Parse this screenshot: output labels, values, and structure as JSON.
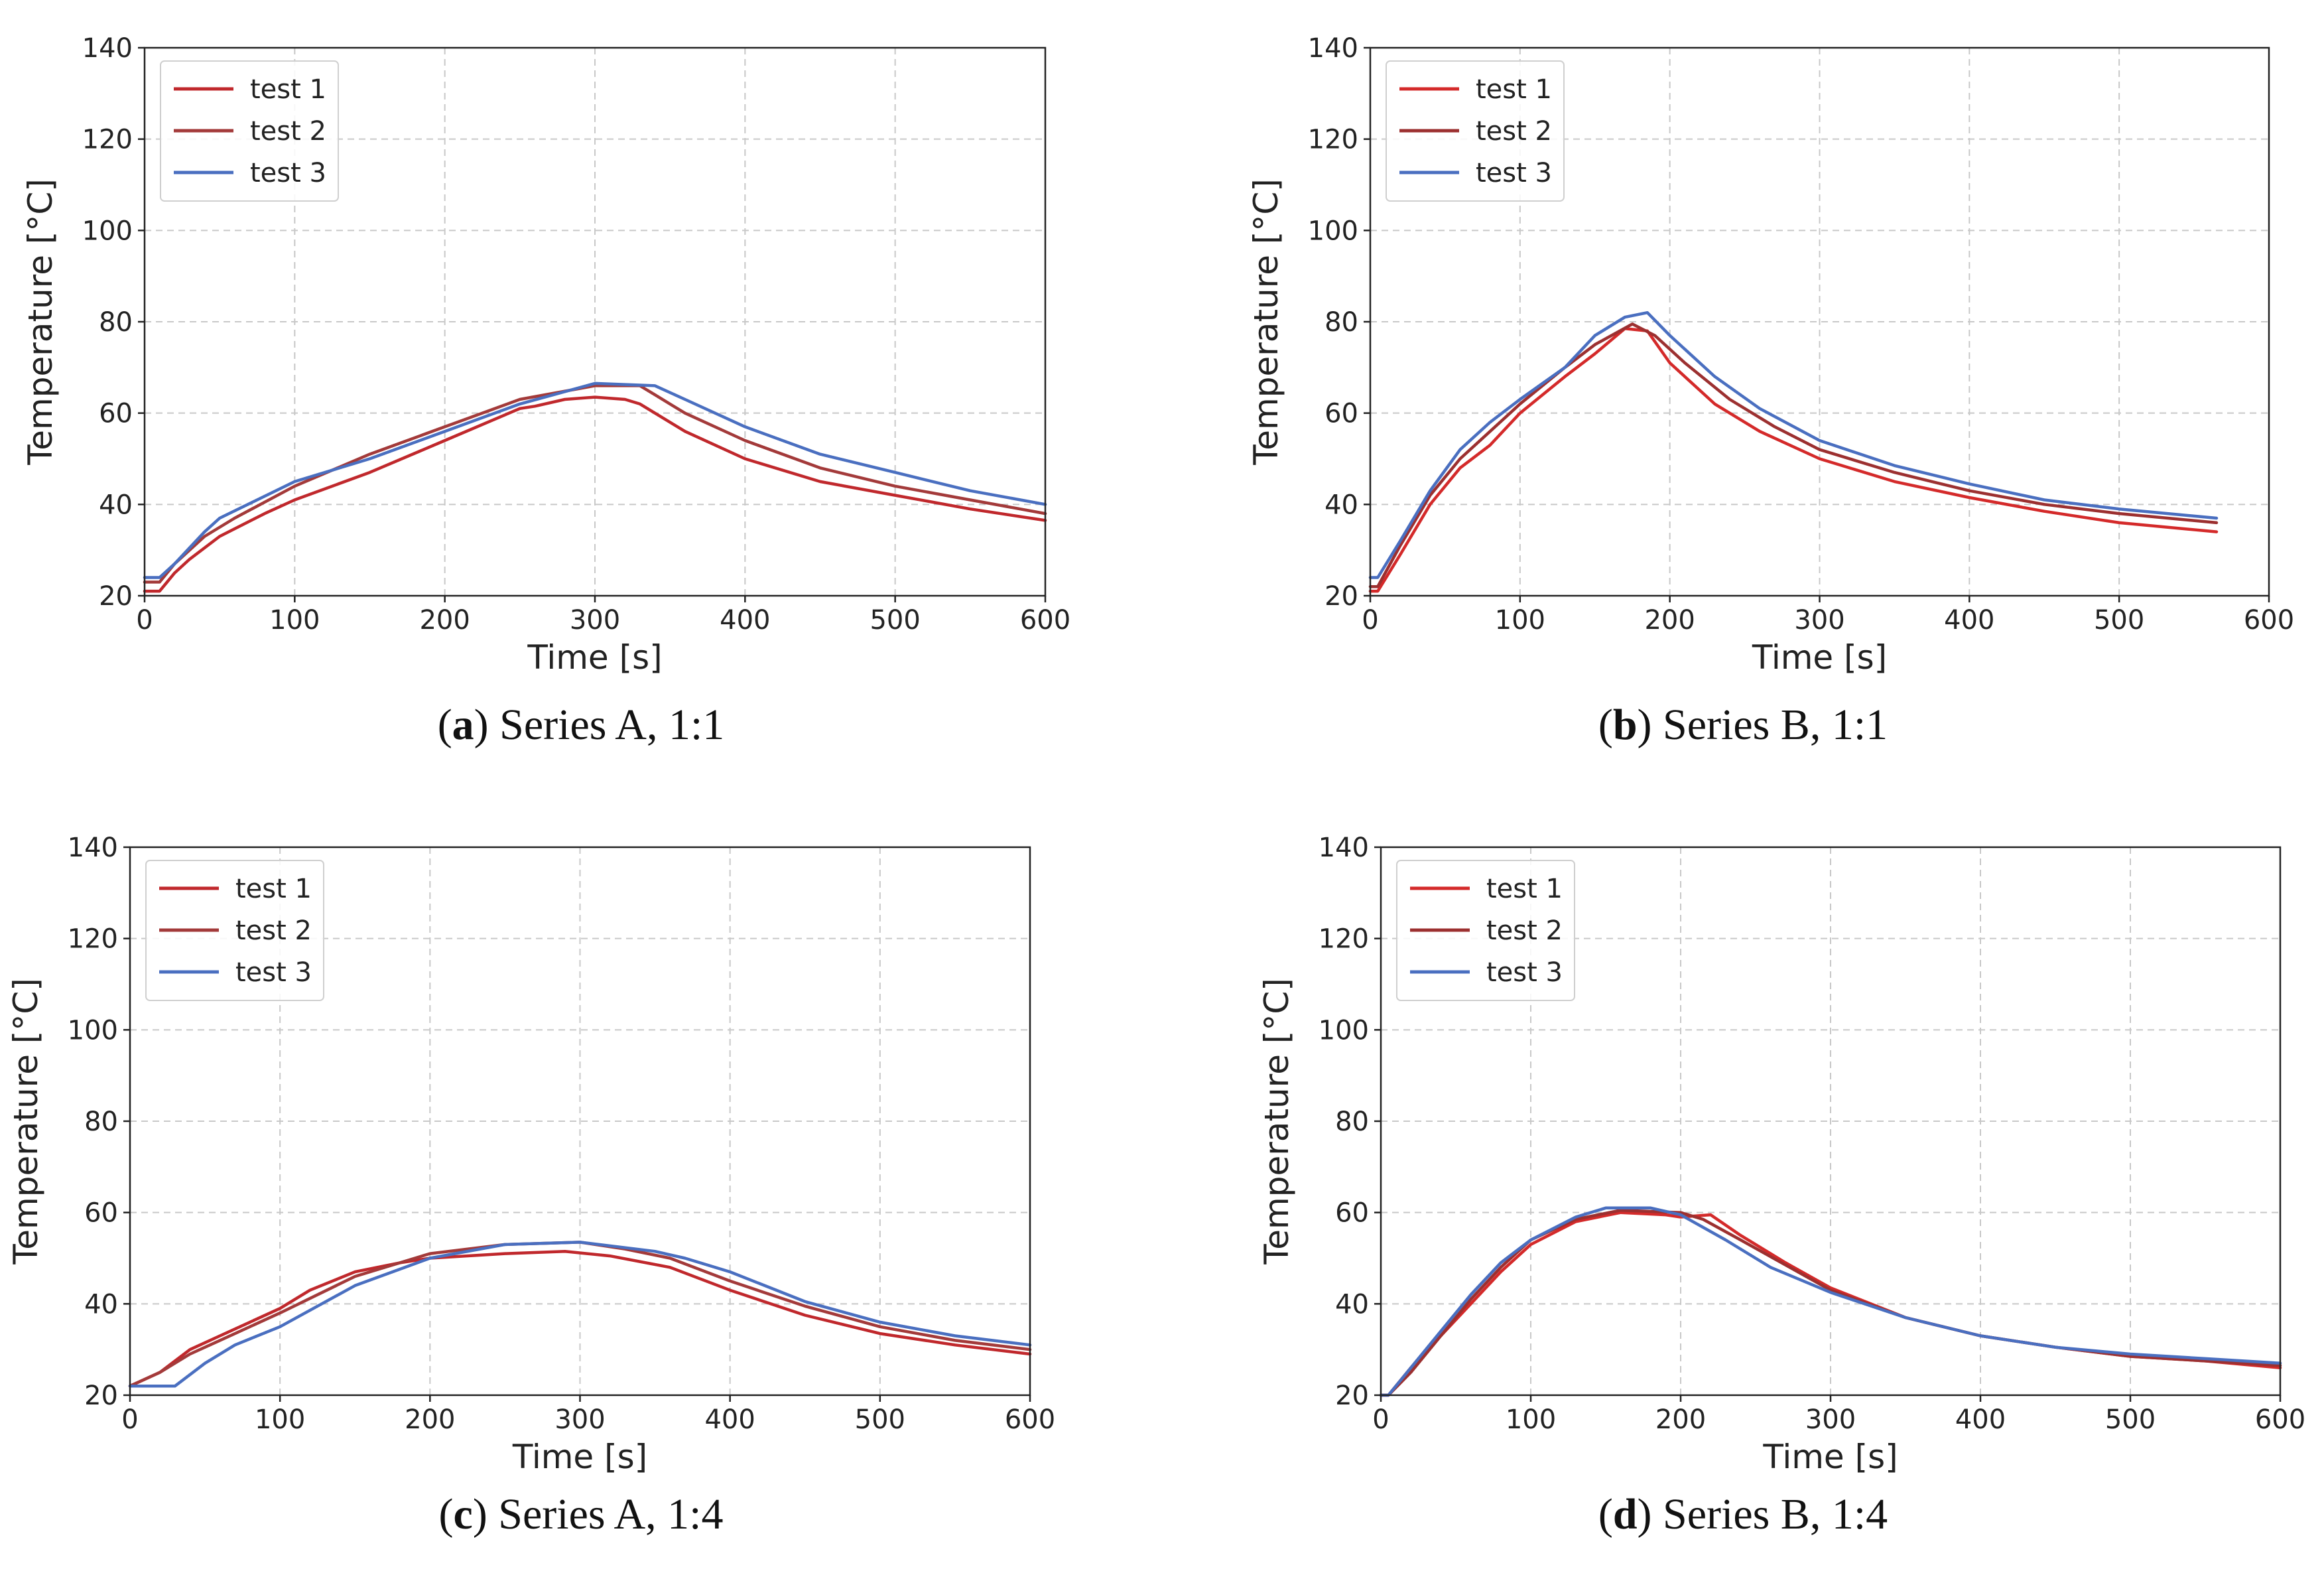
{
  "chart_data": [
    {
      "type": "line",
      "panel_letter": "a",
      "caption": "Series A, 1:1",
      "xlabel": "Time [s]",
      "ylabel": "Temperature [°C]",
      "xlim": [
        0,
        600
      ],
      "ylim": [
        20,
        140
      ],
      "xticks": [
        0,
        100,
        200,
        300,
        400,
        500,
        600
      ],
      "yticks": [
        20,
        40,
        60,
        80,
        100,
        120,
        140
      ],
      "grid": true,
      "legend_position": "top-left",
      "series": [
        {
          "name": "test 1",
          "color": "#c0282c",
          "points": [
            [
              0,
              21
            ],
            [
              10,
              21
            ],
            [
              20,
              25
            ],
            [
              30,
              28
            ],
            [
              50,
              33
            ],
            [
              80,
              38
            ],
            [
              100,
              41
            ],
            [
              150,
              47
            ],
            [
              200,
              54
            ],
            [
              250,
              61
            ],
            [
              260,
              61.5
            ],
            [
              280,
              63
            ],
            [
              300,
              63.5
            ],
            [
              320,
              63
            ],
            [
              330,
              62
            ],
            [
              340,
              60
            ],
            [
              360,
              56
            ],
            [
              400,
              50
            ],
            [
              450,
              45
            ],
            [
              500,
              42
            ],
            [
              550,
              39
            ],
            [
              600,
              36.5
            ]
          ]
        },
        {
          "name": "test 2",
          "color": "#a33a3a",
          "points": [
            [
              0,
              23
            ],
            [
              10,
              23
            ],
            [
              20,
              27
            ],
            [
              40,
              33
            ],
            [
              60,
              37
            ],
            [
              100,
              44
            ],
            [
              150,
              51
            ],
            [
              200,
              57
            ],
            [
              250,
              63
            ],
            [
              300,
              66
            ],
            [
              330,
              66
            ],
            [
              340,
              64
            ],
            [
              360,
              60
            ],
            [
              400,
              54
            ],
            [
              450,
              48
            ],
            [
              500,
              44
            ],
            [
              550,
              41
            ],
            [
              600,
              38
            ]
          ]
        },
        {
          "name": "test 3",
          "color": "#4a6fc0",
          "points": [
            [
              0,
              24
            ],
            [
              10,
              24
            ],
            [
              20,
              27
            ],
            [
              40,
              34
            ],
            [
              50,
              37
            ],
            [
              100,
              45
            ],
            [
              150,
              50
            ],
            [
              200,
              56
            ],
            [
              250,
              62
            ],
            [
              300,
              66.5
            ],
            [
              340,
              66
            ],
            [
              360,
              63
            ],
            [
              400,
              57
            ],
            [
              450,
              51
            ],
            [
              500,
              47
            ],
            [
              550,
              43
            ],
            [
              600,
              40
            ]
          ]
        }
      ]
    },
    {
      "type": "line",
      "panel_letter": "b",
      "caption": "Series B, 1:1",
      "xlabel": "Time [s]",
      "ylabel": "Temperature [°C]",
      "xlim": [
        0,
        600
      ],
      "ylim": [
        20,
        140
      ],
      "xticks": [
        0,
        100,
        200,
        300,
        400,
        500,
        600
      ],
      "yticks": [
        20,
        40,
        60,
        80,
        100,
        120,
        140
      ],
      "grid": true,
      "legend_position": "top-left",
      "series": [
        {
          "name": "test 1",
          "color": "#d42a2a",
          "points": [
            [
              0,
              21
            ],
            [
              5,
              21
            ],
            [
              20,
              29
            ],
            [
              40,
              40
            ],
            [
              60,
              48
            ],
            [
              80,
              53
            ],
            [
              100,
              60
            ],
            [
              130,
              68
            ],
            [
              150,
              73
            ],
            [
              170,
              78.5
            ],
            [
              185,
              78
            ],
            [
              200,
              71
            ],
            [
              230,
              62
            ],
            [
              260,
              56
            ],
            [
              300,
              50
            ],
            [
              350,
              45
            ],
            [
              400,
              41.5
            ],
            [
              450,
              38.5
            ],
            [
              500,
              36
            ],
            [
              565,
              34
            ]
          ]
        },
        {
          "name": "test 2",
          "color": "#9c3030",
          "points": [
            [
              0,
              22
            ],
            [
              5,
              22
            ],
            [
              20,
              31
            ],
            [
              40,
              42
            ],
            [
              60,
              50
            ],
            [
              80,
              56
            ],
            [
              100,
              62
            ],
            [
              130,
              70
            ],
            [
              150,
              75
            ],
            [
              175,
              79.5
            ],
            [
              190,
              77
            ],
            [
              210,
              71
            ],
            [
              240,
              63
            ],
            [
              270,
              57
            ],
            [
              300,
              52
            ],
            [
              350,
              47
            ],
            [
              400,
              43
            ],
            [
              450,
              40
            ],
            [
              500,
              38
            ],
            [
              565,
              36
            ]
          ]
        },
        {
          "name": "test 3",
          "color": "#4a6fc0",
          "points": [
            [
              0,
              24
            ],
            [
              5,
              24
            ],
            [
              20,
              32
            ],
            [
              40,
              43
            ],
            [
              60,
              52
            ],
            [
              80,
              58
            ],
            [
              100,
              63
            ],
            [
              130,
              70
            ],
            [
              150,
              77
            ],
            [
              170,
              81
            ],
            [
              185,
              82
            ],
            [
              200,
              77
            ],
            [
              230,
              68
            ],
            [
              260,
              61
            ],
            [
              300,
              54
            ],
            [
              350,
              48.5
            ],
            [
              400,
              44.5
            ],
            [
              450,
              41
            ],
            [
              500,
              39
            ],
            [
              565,
              37
            ]
          ]
        }
      ]
    },
    {
      "type": "line",
      "panel_letter": "c",
      "caption": "Series A, 1:4",
      "xlabel": "Time [s]",
      "ylabel": "Temperature [°C]",
      "xlim": [
        0,
        600
      ],
      "ylim": [
        20,
        140
      ],
      "xticks": [
        0,
        100,
        200,
        300,
        400,
        500,
        600
      ],
      "yticks": [
        20,
        40,
        60,
        80,
        100,
        120,
        140
      ],
      "grid": true,
      "legend_position": "top-left",
      "series": [
        {
          "name": "test 1",
          "color": "#c0282c",
          "points": [
            [
              0,
              22
            ],
            [
              20,
              25
            ],
            [
              40,
              30
            ],
            [
              60,
              33
            ],
            [
              80,
              36
            ],
            [
              100,
              39
            ],
            [
              120,
              43
            ],
            [
              150,
              47
            ],
            [
              180,
              49
            ],
            [
              200,
              50
            ],
            [
              250,
              51
            ],
            [
              290,
              51.5
            ],
            [
              320,
              50.5
            ],
            [
              360,
              48
            ],
            [
              400,
              43
            ],
            [
              450,
              37.5
            ],
            [
              500,
              33.5
            ],
            [
              550,
              31
            ],
            [
              600,
              29
            ]
          ]
        },
        {
          "name": "test 2",
          "color": "#a33a3a",
          "points": [
            [
              0,
              22
            ],
            [
              20,
              25
            ],
            [
              40,
              29
            ],
            [
              60,
              32
            ],
            [
              100,
              38
            ],
            [
              150,
              46
            ],
            [
              200,
              51
            ],
            [
              250,
              53
            ],
            [
              300,
              53.5
            ],
            [
              330,
              52
            ],
            [
              360,
              50
            ],
            [
              400,
              45
            ],
            [
              450,
              39.5
            ],
            [
              500,
              35
            ],
            [
              550,
              32
            ],
            [
              600,
              30
            ]
          ]
        },
        {
          "name": "test 3",
          "color": "#4a6fc0",
          "points": [
            [
              0,
              22
            ],
            [
              20,
              22
            ],
            [
              30,
              22
            ],
            [
              50,
              27
            ],
            [
              70,
              31
            ],
            [
              100,
              35
            ],
            [
              150,
              44
            ],
            [
              200,
              50
            ],
            [
              250,
              53
            ],
            [
              300,
              53.5
            ],
            [
              350,
              51.5
            ],
            [
              370,
              50
            ],
            [
              400,
              47
            ],
            [
              450,
              40.5
            ],
            [
              500,
              36
            ],
            [
              550,
              33
            ],
            [
              600,
              31
            ]
          ]
        }
      ]
    },
    {
      "type": "line",
      "panel_letter": "d",
      "caption": "Series B, 1:4",
      "xlabel": "Time [s]",
      "ylabel": "Temperature [°C]",
      "xlim": [
        0,
        600
      ],
      "ylim": [
        20,
        140
      ],
      "xticks": [
        0,
        100,
        200,
        300,
        400,
        500,
        600
      ],
      "yticks": [
        20,
        40,
        60,
        80,
        100,
        120,
        140
      ],
      "grid": true,
      "legend_position": "top-left",
      "series": [
        {
          "name": "test 1",
          "color": "#d42a2a",
          "points": [
            [
              0,
              20
            ],
            [
              5,
              20
            ],
            [
              20,
              26
            ],
            [
              40,
              33
            ],
            [
              60,
              40
            ],
            [
              80,
              47
            ],
            [
              100,
              53
            ],
            [
              130,
              58
            ],
            [
              160,
              60
            ],
            [
              190,
              59.5
            ],
            [
              200,
              59
            ],
            [
              220,
              59.5
            ],
            [
              240,
              55
            ],
            [
              270,
              49
            ],
            [
              300,
              43.5
            ],
            [
              350,
              37
            ],
            [
              400,
              33
            ],
            [
              450,
              30.5
            ],
            [
              500,
              28.5
            ],
            [
              550,
              27.5
            ],
            [
              600,
              26
            ]
          ]
        },
        {
          "name": "test 2",
          "color": "#9c3030",
          "points": [
            [
              0,
              20
            ],
            [
              5,
              20
            ],
            [
              20,
              25
            ],
            [
              40,
              33
            ],
            [
              60,
              41
            ],
            [
              80,
              48
            ],
            [
              100,
              54
            ],
            [
              130,
              58.5
            ],
            [
              160,
              60.5
            ],
            [
              200,
              60
            ],
            [
              215,
              58.5
            ],
            [
              240,
              54
            ],
            [
              270,
              48.5
            ],
            [
              300,
              43
            ],
            [
              350,
              37
            ],
            [
              400,
              33
            ],
            [
              450,
              30.5
            ],
            [
              500,
              28.5
            ],
            [
              550,
              27.5
            ],
            [
              600,
              26.5
            ]
          ]
        },
        {
          "name": "test 3",
          "color": "#4a6fc0",
          "points": [
            [
              0,
              20
            ],
            [
              5,
              20
            ],
            [
              20,
              26
            ],
            [
              40,
              34
            ],
            [
              60,
              42
            ],
            [
              80,
              49
            ],
            [
              100,
              54
            ],
            [
              130,
              59
            ],
            [
              150,
              61
            ],
            [
              180,
              61
            ],
            [
              200,
              59.5
            ],
            [
              230,
              54
            ],
            [
              260,
              48
            ],
            [
              300,
              42.5
            ],
            [
              350,
              37
            ],
            [
              400,
              33
            ],
            [
              450,
              30.5
            ],
            [
              500,
              29
            ],
            [
              550,
              28
            ],
            [
              600,
              27
            ]
          ]
        }
      ]
    }
  ]
}
